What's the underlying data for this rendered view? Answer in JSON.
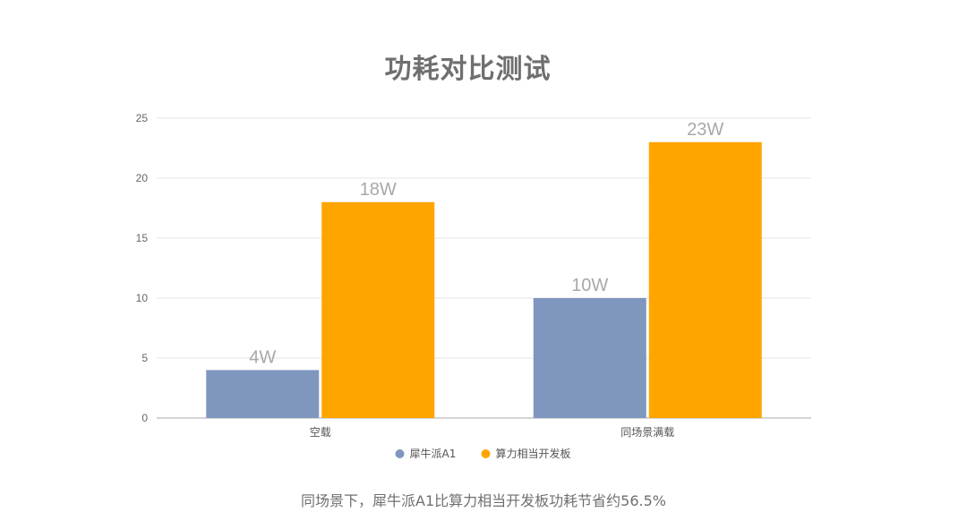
{
  "chart_data": {
    "type": "bar",
    "title": "功耗对比测试",
    "categories": [
      "空载",
      "同场景满载"
    ],
    "series": [
      {
        "name": "犀牛派A1",
        "values": [
          4,
          10
        ],
        "labels": [
          "4W",
          "10W"
        ],
        "color": "#7f97bf"
      },
      {
        "name": "算力相当开发板",
        "values": [
          18,
          23
        ],
        "labels": [
          "18W",
          "23W"
        ],
        "color": "#ffa500"
      }
    ],
    "ylim": [
      0,
      25
    ],
    "yticks": [
      0,
      5,
      10,
      15,
      20,
      25
    ],
    "xlabel": "",
    "ylabel": "",
    "grid": true,
    "legend_position": "bottom-center"
  },
  "caption": "同场景下，犀牛派A1比算力相当开发板功耗节省约56.5%"
}
